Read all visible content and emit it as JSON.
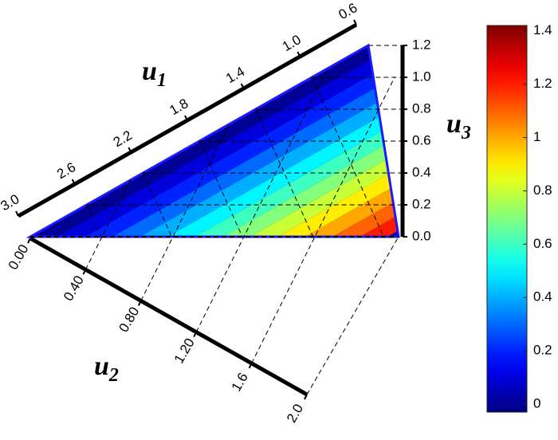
{
  "chart_data": {
    "type": "ternary-contour",
    "axes": {
      "u1": {
        "label": "u",
        "subscript": "1",
        "lim": [
          3.0,
          0.6
        ],
        "ticks": [
          {
            "value": 3,
            "label": "3.0"
          },
          2.6,
          2.2,
          1.8,
          1.4,
          {
            "value": 1,
            "label": "1.0"
          },
          0.6
        ]
      },
      "u2": {
        "label": "u",
        "subscript": "2",
        "lim": [
          0,
          2
        ],
        "ticks": [
          {
            "value": 0,
            "label": "0.00"
          },
          {
            "value": 0.4,
            "label": "0.40"
          },
          {
            "value": 0.8,
            "label": "0.80"
          },
          {
            "value": 1.2,
            "label": "1.20"
          },
          1.6,
          {
            "value": 2,
            "label": "2.0"
          }
        ]
      },
      "u3": {
        "label": "u",
        "subscript": "3",
        "lim": [
          0,
          1.2
        ],
        "ticks": [
          {
            "value": 0,
            "label": "0.0"
          },
          0.2,
          0.4,
          0.6,
          0.8,
          {
            "value": 1,
            "label": "1.0"
          },
          1.2
        ]
      }
    },
    "contour_levels": [
      0,
      0.1,
      0.2,
      0.3,
      0.4,
      0.5,
      0.6,
      0.7,
      0.8,
      0.9,
      1.0,
      1.1,
      1.2,
      1.3
    ],
    "colorbar": {
      "colormap": "jet",
      "lim": [
        -0.03,
        1.42
      ],
      "ticks": [
        0,
        0.2,
        0.4,
        0.6,
        0.8,
        1,
        1.2,
        1.4
      ]
    }
  }
}
